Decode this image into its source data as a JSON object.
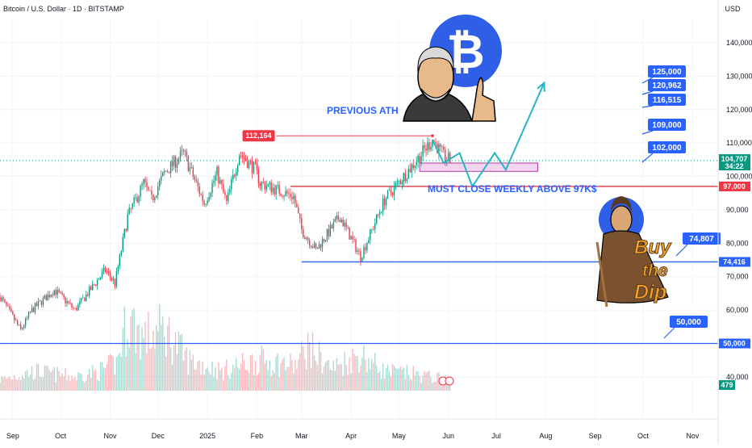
{
  "header": {
    "title": "Bitcoin / U.S. Dollar · 1D · BITSTAMP",
    "currency": "USD"
  },
  "chart_data": {
    "type": "candlestick",
    "title": "Bitcoin / U.S. Dollar · 1D · BITSTAMP",
    "ylim": [
      32000,
      147000
    ],
    "y_ticks": [
      {
        "value": 140000,
        "label": "140,000"
      },
      {
        "value": 130000,
        "label": "130,000"
      },
      {
        "value": 120000,
        "label": "120,000"
      },
      {
        "value": 110000,
        "label": "110,000"
      },
      {
        "value": 100000,
        "label": "100,000"
      },
      {
        "value": 90000,
        "label": "90,000"
      },
      {
        "value": 80000,
        "label": "80,000"
      },
      {
        "value": 70000,
        "label": "70,000"
      },
      {
        "value": 60000,
        "label": "60,000"
      },
      {
        "value": 40000,
        "label": "40,000"
      }
    ],
    "x_ticks": [
      {
        "date": "2024-09-01",
        "label": "Sep"
      },
      {
        "date": "2024-10-01",
        "label": "Oct"
      },
      {
        "date": "2024-11-01",
        "label": "Nov"
      },
      {
        "date": "2024-12-01",
        "label": "Dec"
      },
      {
        "date": "2025-01-01",
        "label": "2025"
      },
      {
        "date": "2025-02-01",
        "label": "Feb"
      },
      {
        "date": "2025-03-01",
        "label": "Mar"
      },
      {
        "date": "2025-04-01",
        "label": "Apr"
      },
      {
        "date": "2025-05-01",
        "label": "May"
      },
      {
        "date": "2025-06-01",
        "label": "Jun"
      },
      {
        "date": "2025-07-01",
        "label": "Jul"
      },
      {
        "date": "2025-08-01",
        "label": "Aug"
      },
      {
        "date": "2025-09-01",
        "label": "Sep"
      },
      {
        "date": "2025-10-01",
        "label": "Oct"
      },
      {
        "date": "2025-11-01",
        "label": "Nov"
      }
    ],
    "price_path": [
      [
        "2024-08-24",
        64000
      ],
      [
        "2024-09-06",
        54000
      ],
      [
        "2024-09-13",
        60000
      ],
      [
        "2024-09-27",
        66000
      ],
      [
        "2024-10-10",
        60000
      ],
      [
        "2024-10-29",
        72000
      ],
      [
        "2024-11-04",
        68000
      ],
      [
        "2024-11-12",
        88000
      ],
      [
        "2024-11-22",
        98000
      ],
      [
        "2024-11-27",
        93000
      ],
      [
        "2024-12-05",
        101000
      ],
      [
        "2024-12-17",
        107000
      ],
      [
        "2024-12-30",
        92000
      ],
      [
        "2025-01-07",
        101000
      ],
      [
        "2025-01-13",
        92000
      ],
      [
        "2025-01-21",
        107000
      ],
      [
        "2025-01-31",
        102000
      ],
      [
        "2025-02-03",
        98000
      ],
      [
        "2025-02-24",
        94000
      ],
      [
        "2025-03-01",
        84000
      ],
      [
        "2025-03-10",
        78000
      ],
      [
        "2025-03-25",
        88000
      ],
      [
        "2025-04-07",
        76000
      ],
      [
        "2025-04-22",
        93000
      ],
      [
        "2025-05-09",
        103000
      ],
      [
        "2025-05-22",
        111000
      ],
      [
        "2025-05-29",
        106000
      ],
      [
        "2025-06-02",
        104707
      ]
    ],
    "volume_ylim": [
      0,
      65
    ],
    "volume_path": [
      [
        "2024-08-24",
        8
      ],
      [
        "2024-09-15",
        14
      ],
      [
        "2024-10-10",
        10
      ],
      [
        "2024-10-25",
        14
      ],
      [
        "2024-11-05",
        20
      ],
      [
        "2024-11-12",
        52
      ],
      [
        "2024-11-22",
        38
      ],
      [
        "2024-12-05",
        44
      ],
      [
        "2024-12-20",
        22
      ],
      [
        "2025-01-10",
        14
      ],
      [
        "2025-01-20",
        18
      ],
      [
        "2025-02-03",
        22
      ],
      [
        "2025-02-25",
        18
      ],
      [
        "2025-03-05",
        32
      ],
      [
        "2025-03-20",
        16
      ],
      [
        "2025-04-07",
        26
      ],
      [
        "2025-04-22",
        14
      ],
      [
        "2025-05-10",
        12
      ],
      [
        "2025-05-31",
        8
      ]
    ],
    "current_price": {
      "value": 104707,
      "label": "104,707",
      "countdown": "34:22"
    },
    "volume_badge": "479",
    "horizontal_levels": [
      {
        "value": 97000,
        "label": "97,000",
        "color": "#f23645",
        "start": "2025-02-22"
      },
      {
        "value": 74416,
        "label": "74,416",
        "color": "#2962ff",
        "start": "2025-03-01"
      },
      {
        "value": 50000,
        "label": "50,000",
        "color": "#2962ff",
        "start": "2024-08-24"
      }
    ],
    "ath": {
      "value": 112164,
      "label": "112,164",
      "start": "2025-01-25",
      "end": "2025-05-22"
    },
    "zone": {
      "top": 104000,
      "bottom": 101500,
      "start": "2025-05-14",
      "end": "2025-07-27"
    },
    "projection_path": [
      [
        "2025-05-22",
        111000
      ],
      [
        "2025-05-29",
        104000
      ],
      [
        "2025-06-08",
        107000
      ],
      [
        "2025-06-16",
        97000
      ],
      [
        "2025-06-30",
        107000
      ],
      [
        "2025-07-07",
        102000
      ],
      [
        "2025-07-31",
        128000
      ]
    ],
    "targets": [
      {
        "value": 125000,
        "label": "125,000"
      },
      {
        "value": 120962,
        "label": "120,962"
      },
      {
        "value": 116515,
        "label": "116,515"
      },
      {
        "value": 109000,
        "label": "109,000"
      },
      {
        "value": 102000,
        "label": "102,000"
      },
      {
        "value": 74807,
        "label": "74,807"
      },
      {
        "value": 50000,
        "label": "50,000"
      }
    ],
    "annotations": {
      "previous_ath": "PREVIOUS ATH",
      "weekly_close": "MUST CLOSE WEEKLY ABOVE 97K$",
      "buy": "Buy",
      "the": "the",
      "dip": "Dip"
    },
    "colors": {
      "up": "#089981",
      "down": "#f23645",
      "level_red": "#f23645",
      "level_blue": "#2962ff",
      "projection": "#26b5c4",
      "zone_fill": "#f3d5f0",
      "zone_stroke": "#b03aa6"
    }
  }
}
